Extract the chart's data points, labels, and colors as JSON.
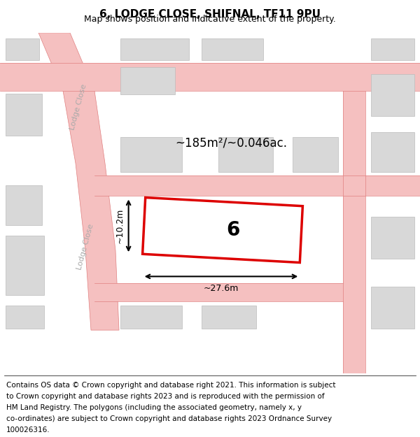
{
  "title": "6, LODGE CLOSE, SHIFNAL, TF11 9PU",
  "subtitle": "Map shows position and indicative extent of the property.",
  "footer_lines": [
    "Contains OS data © Crown copyright and database right 2021. This information is subject",
    "to Crown copyright and database rights 2023 and is reproduced with the permission of",
    "HM Land Registry. The polygons (including the associated geometry, namely x, y",
    "co-ordinates) are subject to Crown copyright and database rights 2023 Ordnance Survey",
    "100026316."
  ],
  "map_bg": "#ffffff",
  "road_color": "#f5c0c0",
  "road_line_color": "#e08080",
  "building_color": "#d8d8d8",
  "building_edge_color": "#bbbbbb",
  "subject_fill": "#ffffff",
  "subject_edge": "#dd0000",
  "street_label_color": "#aaaaaa",
  "area_text": "~185m²/~0.046ac.",
  "plot_number": "6",
  "dim_width": "~27.6m",
  "dim_height": "~10.2m",
  "title_fontsize": 11,
  "subtitle_fontsize": 9,
  "footer_fontsize": 7.5
}
